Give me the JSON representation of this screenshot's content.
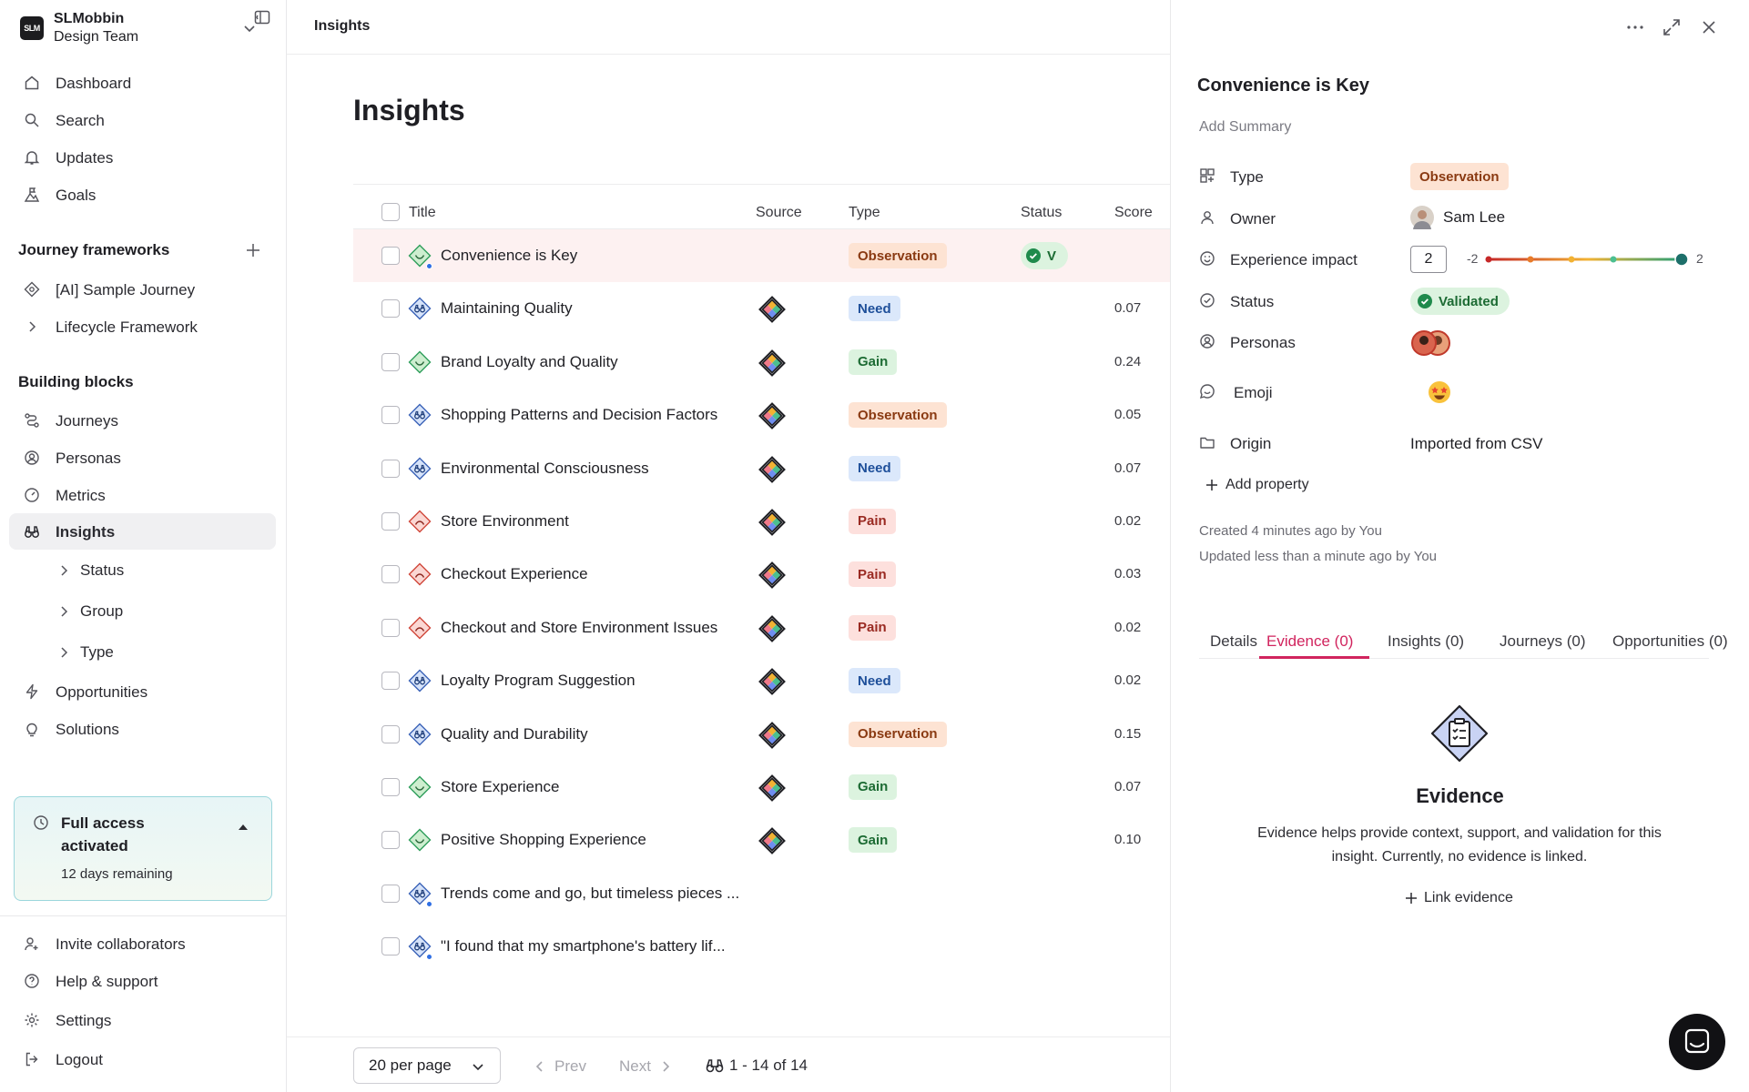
{
  "workspace": {
    "logo_text": "SLM",
    "name": "SLMobbin",
    "team": "Design Team"
  },
  "nav": {
    "dashboard": "Dashboard",
    "search": "Search",
    "updates": "Updates",
    "goals": "Goals",
    "journey_frameworks_heading": "Journey frameworks",
    "sample_journey": "[AI] Sample Journey",
    "lifecycle": "Lifecycle Framework",
    "building_blocks_heading": "Building blocks",
    "journeys": "Journeys",
    "personas": "Personas",
    "metrics": "Metrics",
    "insights": "Insights",
    "sub_status": "Status",
    "sub_group": "Group",
    "sub_type": "Type",
    "opportunities": "Opportunities",
    "solutions": "Solutions",
    "invite": "Invite collaborators",
    "help": "Help & support",
    "settings": "Settings",
    "logout": "Logout"
  },
  "trial": {
    "title": "Full access activated",
    "remaining": "12 days remaining"
  },
  "breadcrumb": "Insights",
  "page_title": "Insights",
  "table": {
    "headers": {
      "title": "Title",
      "source": "Source",
      "type": "Type",
      "status": "Status",
      "score": "Score"
    },
    "rows": [
      {
        "title": "Convenience is Key",
        "icon": "observation-icon",
        "type": "Observation",
        "status": "V",
        "score": "",
        "has_source": false,
        "new_dot": true,
        "selected": true
      },
      {
        "title": "Maintaining Quality",
        "icon": "need-icon",
        "type": "Need",
        "status": "",
        "score": "0.07",
        "has_source": true
      },
      {
        "title": "Brand Loyalty and Quality",
        "icon": "gain-icon",
        "type": "Gain",
        "status": "",
        "score": "0.24",
        "has_source": true
      },
      {
        "title": "Shopping Patterns and Decision Factors",
        "icon": "need-icon",
        "type": "Observation",
        "status": "",
        "score": "0.05",
        "has_source": true
      },
      {
        "title": "Environmental Consciousness",
        "icon": "need-icon",
        "type": "Need",
        "status": "",
        "score": "0.07",
        "has_source": true
      },
      {
        "title": "Store Environment",
        "icon": "pain-icon",
        "type": "Pain",
        "status": "",
        "score": "0.02",
        "has_source": true
      },
      {
        "title": "Checkout Experience",
        "icon": "pain-icon",
        "type": "Pain",
        "status": "",
        "score": "0.03",
        "has_source": true
      },
      {
        "title": "Checkout and Store Environment Issues",
        "icon": "pain-icon",
        "type": "Pain",
        "status": "",
        "score": "0.02",
        "has_source": true
      },
      {
        "title": "Loyalty Program Suggestion",
        "icon": "need-icon",
        "type": "Need",
        "status": "",
        "score": "0.02",
        "has_source": true
      },
      {
        "title": "Quality and Durability",
        "icon": "need-icon",
        "type": "Observation",
        "status": "",
        "score": "0.15",
        "has_source": true
      },
      {
        "title": "Store Experience",
        "icon": "gain-icon",
        "type": "Gain",
        "status": "",
        "score": "0.07",
        "has_source": true
      },
      {
        "title": "Positive Shopping Experience",
        "icon": "gain-icon",
        "type": "Gain",
        "status": "",
        "score": "0.10",
        "has_source": true
      },
      {
        "title": "Trends come and go, but timeless pieces ...",
        "icon": "need-icon",
        "type": "",
        "status": "",
        "score": "",
        "has_source": false,
        "new_dot": true
      },
      {
        "title": "\"I found that my smartphone's battery lif...",
        "icon": "need-icon",
        "type": "",
        "status": "",
        "score": "",
        "has_source": false,
        "new_dot": true
      }
    ]
  },
  "pagination": {
    "per_page": "20 per page",
    "prev": "Prev",
    "next": "Next",
    "range": "1 - 14 of 14"
  },
  "detail": {
    "title": "Convenience is Key",
    "summary_placeholder": "Add Summary",
    "props": {
      "type_label": "Type",
      "type_value": "Observation",
      "owner_label": "Owner",
      "owner_value": "Sam Lee",
      "impact_label": "Experience impact",
      "impact_value": "2",
      "impact_min": "-2",
      "impact_max": "2",
      "status_label": "Status",
      "status_value": "Validated",
      "personas_label": "Personas",
      "emoji_label": "Emoji",
      "origin_label": "Origin",
      "origin_value": "Imported from CSV"
    },
    "add_property": "Add property",
    "created": "Created 4 minutes ago by You",
    "updated": "Updated less than a minute ago by You",
    "tabs": [
      "Details",
      "Evidence (0)",
      "Insights (0)",
      "Journeys (0)",
      "Opportunities (0)"
    ],
    "active_tab": "Evidence (0)",
    "evidence": {
      "title": "Evidence",
      "description": "Evidence helps provide context, support, and validation for this insight. Currently, no evidence is linked.",
      "link": "Link evidence"
    }
  },
  "colors": {
    "accent": "#d1245e",
    "observation_bg": "#fde3d3",
    "need_bg": "#dbe8fb",
    "gain_bg": "#dcf3df",
    "pain_bg": "#fde0dd",
    "validated": "#1f8a4c"
  }
}
